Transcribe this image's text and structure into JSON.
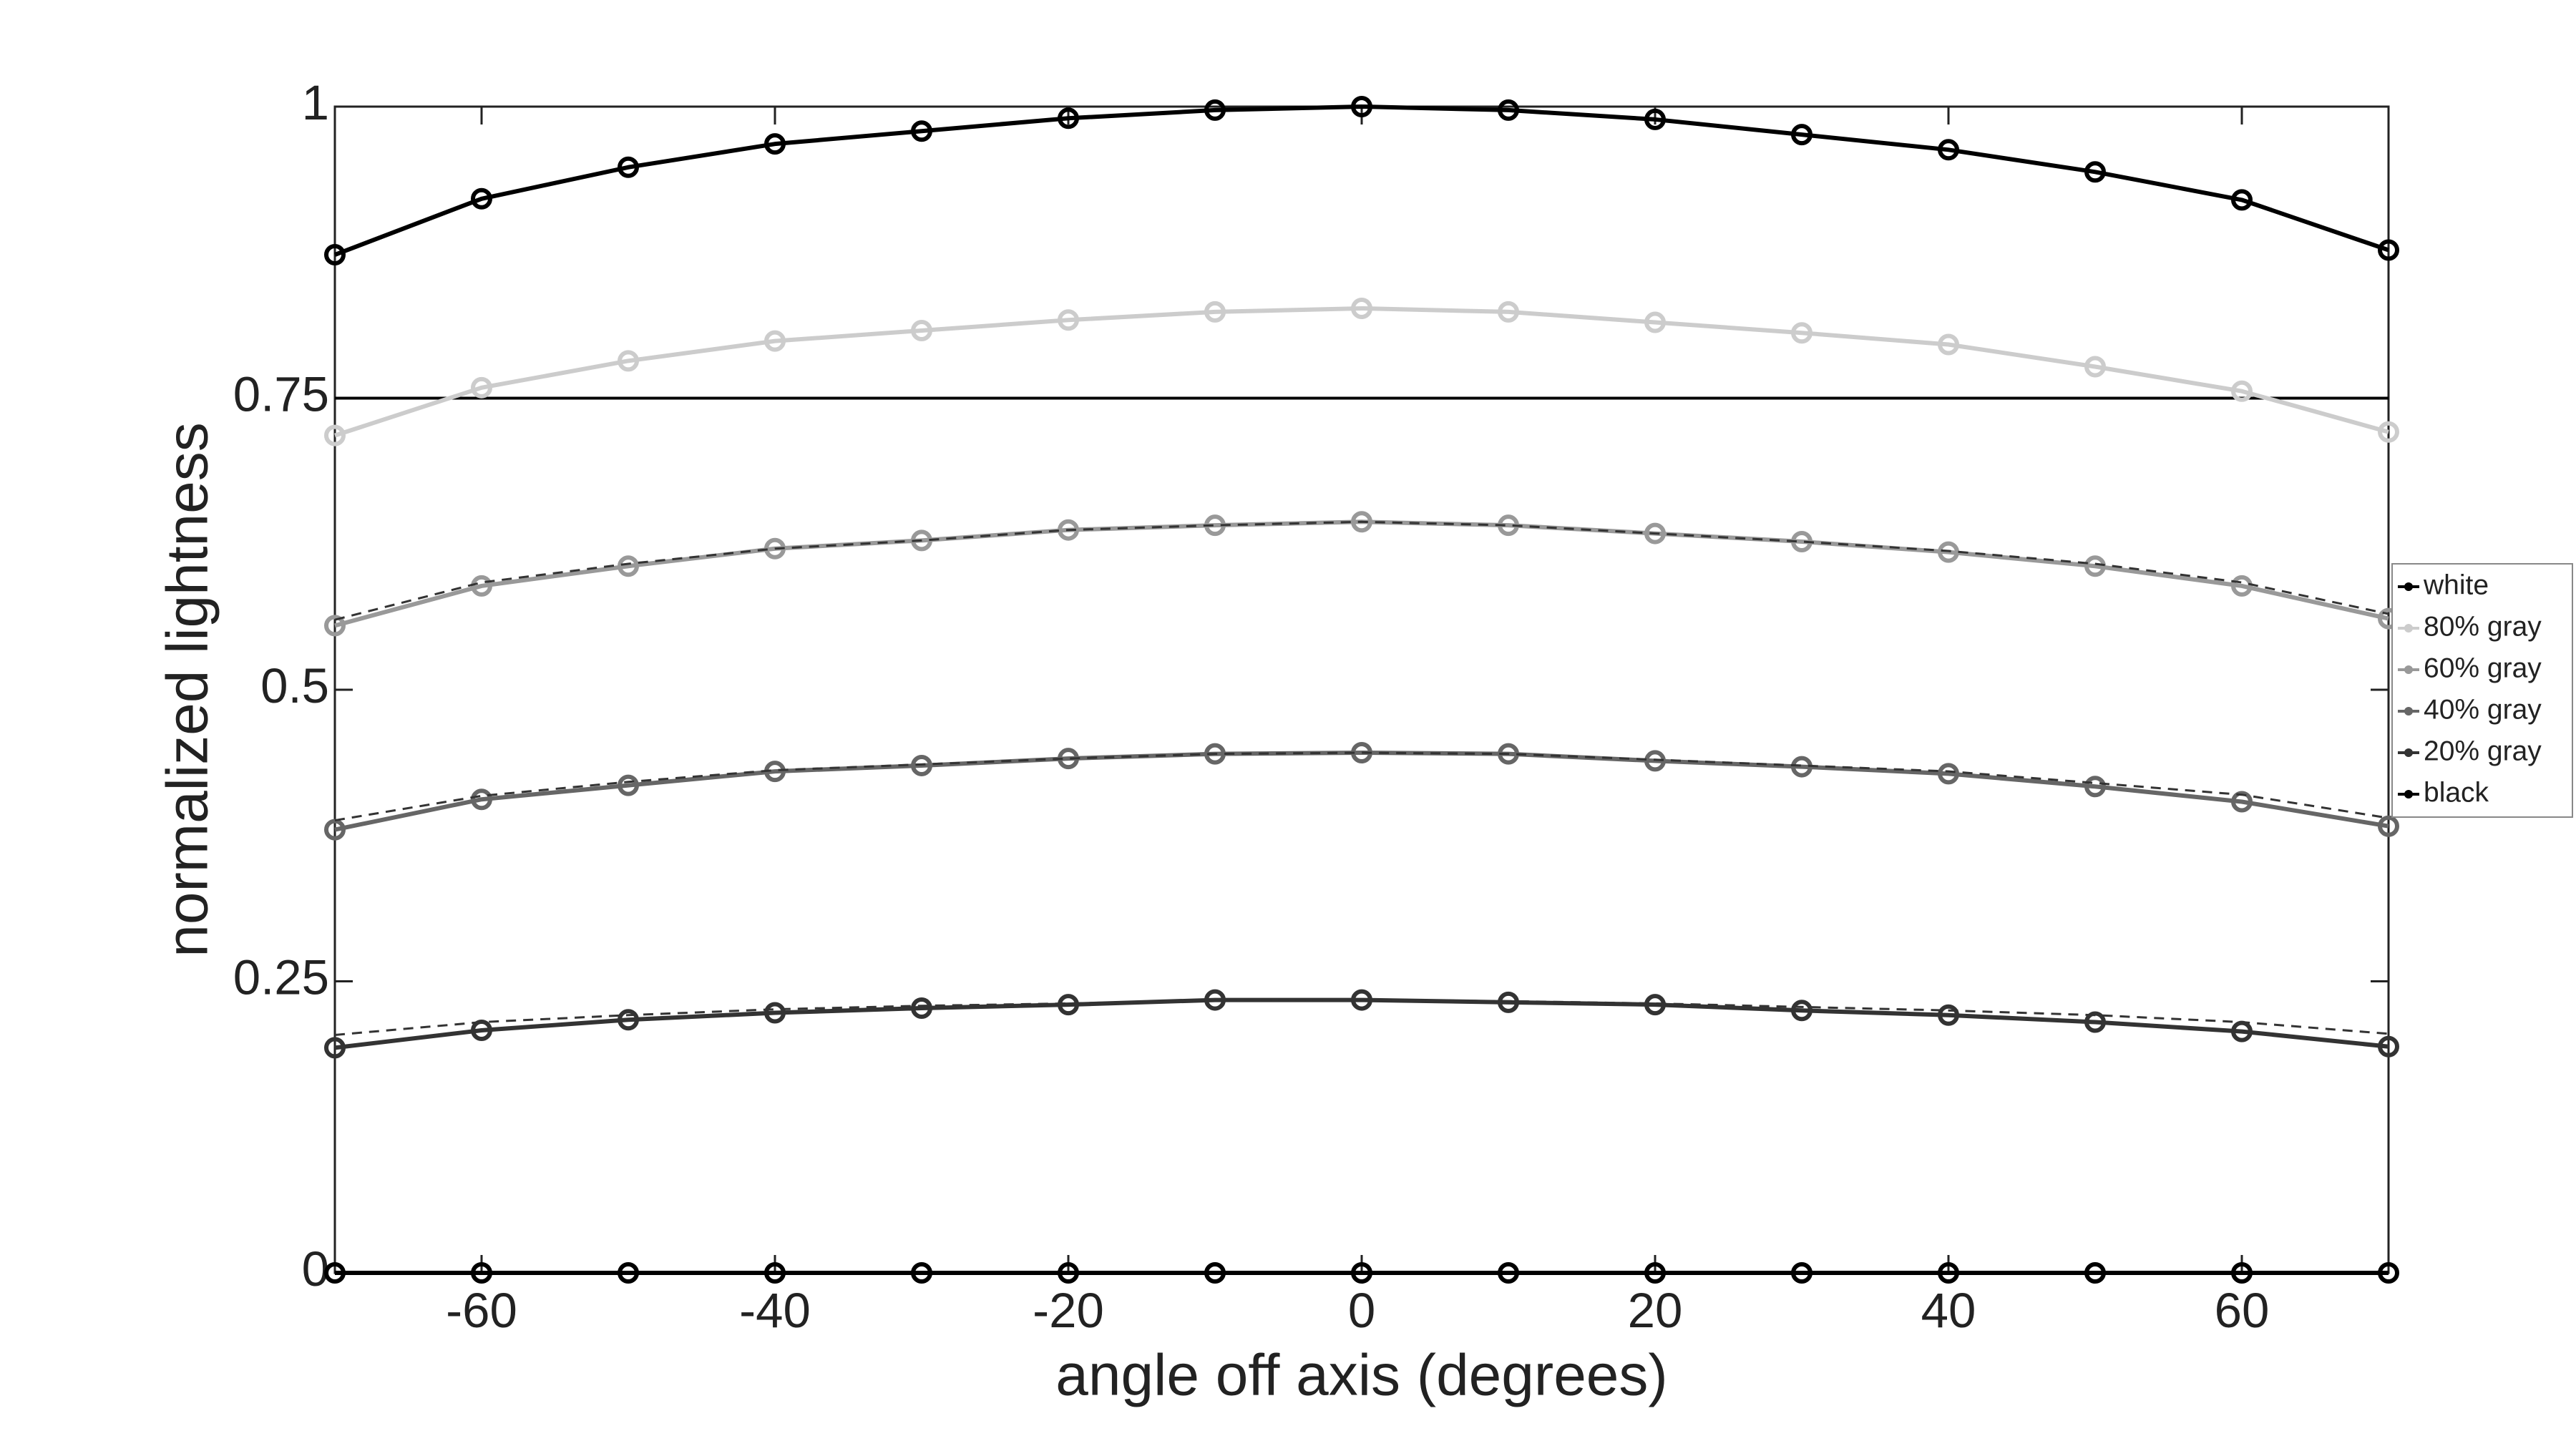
{
  "chart_data": {
    "type": "line",
    "xlabel": "angle off axis (degrees)",
    "ylabel": "normalized lightness",
    "x": [
      -70,
      -60,
      -50,
      -40,
      -30,
      -20,
      -10,
      0,
      10,
      20,
      30,
      40,
      50,
      60,
      70
    ],
    "xlim": [
      -70,
      70
    ],
    "ylim": [
      0,
      1
    ],
    "xticks": [
      -60,
      -40,
      -20,
      0,
      20,
      40,
      60
    ],
    "yticks": [
      0,
      0.25,
      0.5,
      0.75,
      1
    ],
    "hline": 0.75,
    "legend": "right",
    "series": [
      {
        "name": "white",
        "color": "#000000",
        "values": [
          0.873,
          0.921,
          0.948,
          0.968,
          0.979,
          0.99,
          0.997,
          1.0,
          0.997,
          0.989,
          0.976,
          0.963,
          0.944,
          0.92,
          0.877
        ]
      },
      {
        "name": "80% gray",
        "color": "#cccccc",
        "values": [
          0.718,
          0.759,
          0.782,
          0.799,
          0.808,
          0.817,
          0.824,
          0.827,
          0.824,
          0.815,
          0.806,
          0.796,
          0.777,
          0.756,
          0.721
        ]
      },
      {
        "name": "60% gray",
        "color": "#999999",
        "values": [
          0.555,
          0.589,
          0.606,
          0.621,
          0.628,
          0.637,
          0.641,
          0.644,
          0.641,
          0.634,
          0.627,
          0.618,
          0.606,
          0.589,
          0.561
        ]
      },
      {
        "name": "40% gray",
        "color": "#666666",
        "values": [
          0.38,
          0.406,
          0.418,
          0.43,
          0.435,
          0.441,
          0.445,
          0.446,
          0.445,
          0.439,
          0.434,
          0.428,
          0.417,
          0.404,
          0.383
        ]
      },
      {
        "name": "20% gray",
        "color": "#333333",
        "values": [
          0.193,
          0.208,
          0.217,
          0.223,
          0.227,
          0.23,
          0.234,
          0.234,
          0.232,
          0.23,
          0.225,
          0.221,
          0.215,
          0.207,
          0.194
        ]
      },
      {
        "name": "black",
        "color": "#000000",
        "values": [
          0,
          0,
          0,
          0,
          0,
          0,
          0,
          0,
          0,
          0,
          0,
          0,
          0,
          0,
          0
        ]
      }
    ],
    "reference_lines": [
      {
        "color": "#333333",
        "values": [
          0.56,
          0.592,
          0.608,
          0.621,
          0.628,
          0.637,
          0.641,
          0.644,
          0.641,
          0.634,
          0.627,
          0.619,
          0.608,
          0.592,
          0.565
        ]
      },
      {
        "color": "#333333",
        "values": [
          0.388,
          0.409,
          0.421,
          0.431,
          0.436,
          0.441,
          0.445,
          0.446,
          0.445,
          0.44,
          0.435,
          0.43,
          0.42,
          0.41,
          0.39
        ]
      },
      {
        "color": "#333333",
        "values": [
          0.204,
          0.215,
          0.221,
          0.226,
          0.229,
          0.231,
          0.234,
          0.234,
          0.233,
          0.231,
          0.228,
          0.225,
          0.221,
          0.215,
          0.205
        ]
      }
    ]
  }
}
